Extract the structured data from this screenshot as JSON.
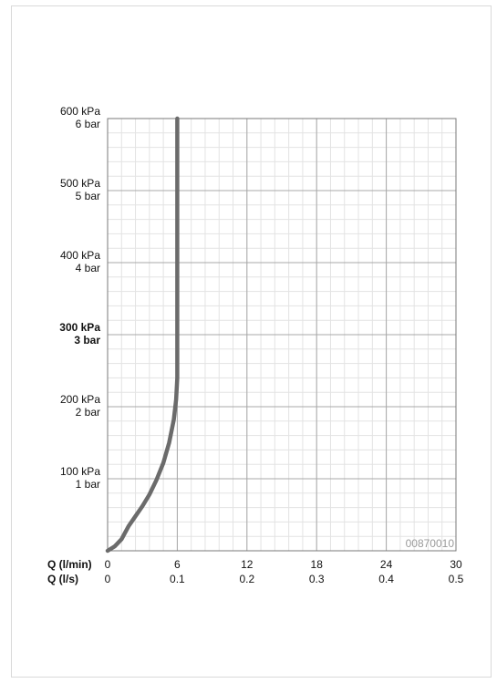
{
  "chart_data": {
    "type": "line",
    "code": "00870010",
    "x_axis_primary": {
      "label": "Q (l/min)",
      "ticks": [
        0,
        6,
        12,
        18,
        24,
        30
      ],
      "tick_labels": [
        "0",
        "6",
        "12",
        "18",
        "24",
        "30"
      ],
      "range": [
        0,
        30
      ]
    },
    "x_axis_secondary": {
      "label": "Q (l/s)",
      "tick_labels": [
        "0",
        "0.1",
        "0.2",
        "0.3",
        "0.4",
        "0.5"
      ]
    },
    "y_axis": {
      "range": [
        0,
        600
      ],
      "unit": "kPa",
      "ticks": [
        {
          "value": 100,
          "kpa": "100 kPa",
          "bar": "1 bar",
          "bold": false
        },
        {
          "value": 200,
          "kpa": "200 kPa",
          "bar": "2 bar",
          "bold": false
        },
        {
          "value": 300,
          "kpa": "300 kPa",
          "bar": "3 bar",
          "bold": true
        },
        {
          "value": 400,
          "kpa": "400 kPa",
          "bar": "4 bar",
          "bold": false
        },
        {
          "value": 500,
          "kpa": "500 kPa",
          "bar": "5 bar",
          "bold": false
        },
        {
          "value": 600,
          "kpa": "600 kPa",
          "bar": "6 bar",
          "bold": false
        }
      ]
    },
    "grid": true,
    "minor_divisions_x": 5,
    "minor_divisions_y": 5,
    "series": [
      {
        "color": "#6b6b6b",
        "x": [
          0,
          0.6,
          1.2,
          1.8,
          2.4,
          3.0,
          3.6,
          4.2,
          4.8,
          5.3,
          5.7,
          5.9,
          6.0,
          6.0,
          6.0
        ],
        "y": [
          0,
          6,
          16,
          34,
          48,
          62,
          78,
          98,
          122,
          150,
          182,
          210,
          240,
          400,
          600
        ]
      }
    ]
  }
}
